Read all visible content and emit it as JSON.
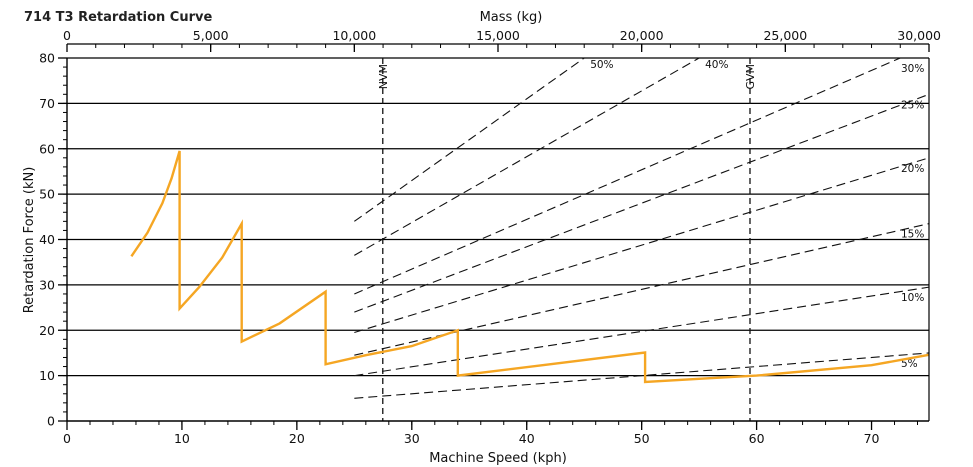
{
  "chart_data": {
    "type": "line",
    "title": "714 T3 Retardation Curve",
    "xlabel": "Machine Speed (kph)",
    "ylabel": "Retardation Force (kN)",
    "top_xlabel": "Mass (kg)",
    "xlim": [
      0,
      75
    ],
    "ylim": [
      0,
      80
    ],
    "top_xlim": [
      0,
      30000
    ],
    "x_ticks": [
      0,
      10,
      20,
      30,
      40,
      50,
      60,
      70
    ],
    "x_tick_labels": [
      "0",
      "10",
      "20",
      "30",
      "40",
      "50",
      "60",
      "70"
    ],
    "y_ticks": [
      0,
      10,
      20,
      30,
      40,
      50,
      60,
      70,
      80
    ],
    "y_tick_labels": [
      "0",
      "10",
      "20",
      "30",
      "40",
      "50",
      "60",
      "70",
      "80"
    ],
    "top_ticks": [
      0,
      5000,
      10000,
      15000,
      20000,
      25000,
      30000
    ],
    "top_tick_labels": [
      "0",
      "5,000",
      "10,000",
      "15,000",
      "20,000",
      "25,000",
      "30,000"
    ],
    "grid": "horizontal",
    "retardation_curve": {
      "color": "#f5a623",
      "points": [
        [
          5.6,
          36.3
        ],
        [
          7.0,
          41.5
        ],
        [
          8.3,
          48.0
        ],
        [
          9.1,
          53.5
        ],
        [
          9.8,
          59.5
        ],
        [
          9.8,
          24.8
        ],
        [
          11.5,
          29.5
        ],
        [
          13.5,
          36.0
        ],
        [
          15.2,
          43.5
        ],
        [
          15.2,
          17.5
        ],
        [
          18.5,
          21.5
        ],
        [
          22.5,
          28.5
        ],
        [
          22.5,
          12.5
        ],
        [
          26.0,
          14.5
        ],
        [
          30.0,
          16.5
        ],
        [
          34.0,
          20.0
        ],
        [
          34.0,
          10.0
        ],
        [
          42.0,
          12.5
        ],
        [
          50.3,
          15.1
        ],
        [
          50.3,
          8.6
        ],
        [
          55.0,
          9.3
        ],
        [
          60.0,
          10.0
        ],
        [
          70.0,
          12.3
        ],
        [
          75.0,
          14.6
        ]
      ]
    },
    "grade_lines": [
      {
        "label": "50%",
        "start": [
          10000,
          44
        ],
        "end": [
          18000,
          80
        ]
      },
      {
        "label": "40%",
        "start": [
          10000,
          36.5
        ],
        "end": [
          22000,
          80
        ]
      },
      {
        "label": "30%",
        "start": [
          10000,
          28
        ],
        "end": [
          29000,
          80
        ]
      },
      {
        "label": "25%",
        "start": [
          10000,
          24
        ],
        "end": [
          30000,
          72
        ]
      },
      {
        "label": "20%",
        "start": [
          10000,
          19.5
        ],
        "end": [
          30000,
          58
        ]
      },
      {
        "label": "15%",
        "start": [
          10000,
          14.5
        ],
        "end": [
          30000,
          43.5
        ]
      },
      {
        "label": "10%",
        "start": [
          10000,
          10
        ],
        "end": [
          30000,
          29.5
        ]
      },
      {
        "label": "5%",
        "start": [
          10000,
          5
        ],
        "end": [
          30000,
          15
        ]
      }
    ],
    "vertical_markers": [
      {
        "label": "NVM",
        "mass": 10990
      },
      {
        "label": "GVM",
        "mass": 23770
      }
    ]
  }
}
